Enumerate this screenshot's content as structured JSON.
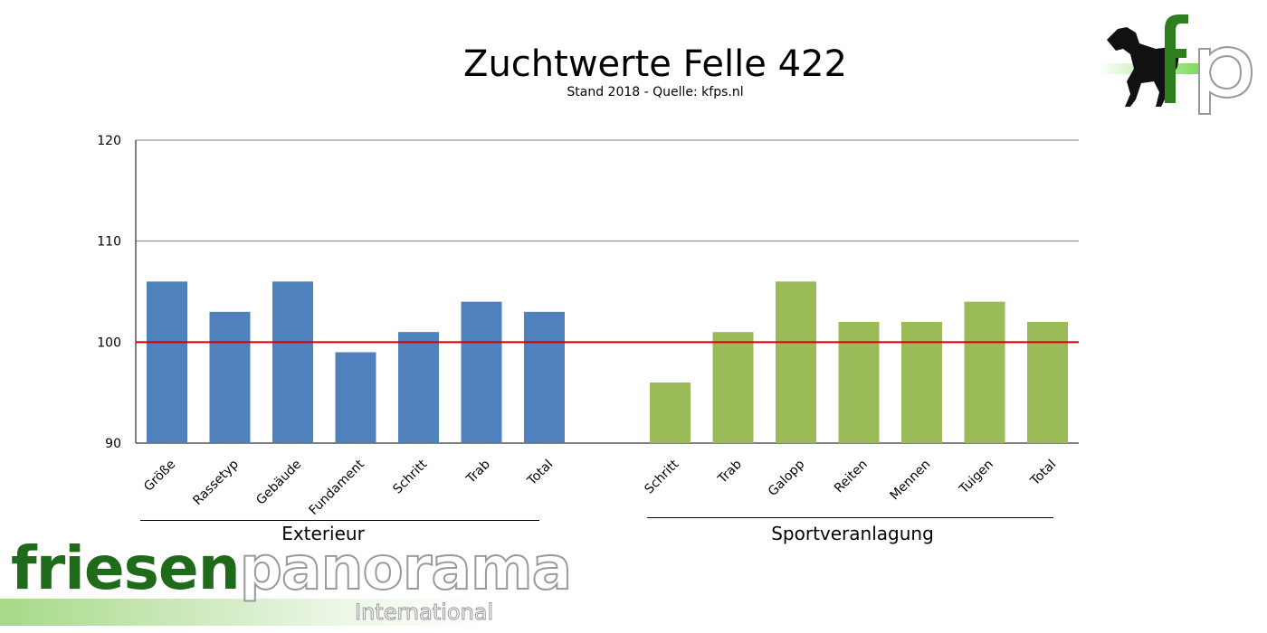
{
  "chart_data": {
    "type": "bar",
    "title": "Zuchtwerte Felle 422",
    "subtitle": "Stand 2018 - Quelle: kfps.nl",
    "ylim": [
      90,
      120
    ],
    "yticks": [
      90,
      100,
      110,
      120
    ],
    "grid": true,
    "reference_line": 100,
    "groups": [
      {
        "name": "Exterieur",
        "categories": [
          "Größe",
          "Rassetyp",
          "Gebäude",
          "Fundament",
          "Schritt",
          "Trab",
          "Total"
        ],
        "values": [
          106,
          103,
          106,
          99,
          101,
          104,
          103
        ]
      },
      {
        "name": "Sportveranlagung",
        "categories": [
          "Schritt",
          "Trab",
          "Galopp",
          "Reiten",
          "Mennen",
          "Tuigen",
          "Total"
        ],
        "values": [
          96,
          101,
          106,
          102,
          102,
          104,
          102
        ]
      }
    ]
  },
  "colors": {
    "exterieur": "#4f81bd",
    "sportveranlagung": "#9bbb59",
    "reference_line": "#cc0000",
    "grid": "#808080"
  },
  "logo": {
    "letters": "fp"
  },
  "brand": {
    "part1": "friesen",
    "part2": "panorama",
    "sub": "International"
  }
}
